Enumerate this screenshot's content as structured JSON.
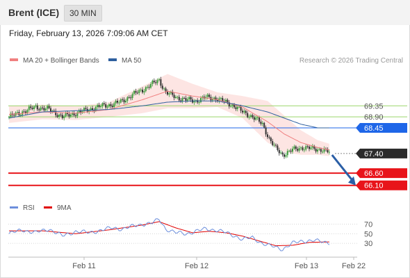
{
  "header": {
    "instrument": "Brent (ICE)",
    "timeframe": "30 MIN"
  },
  "date_line": "Friday, February 13, 2026 7:09:06 AM CET",
  "credit": "Research © 2026 Trading Central",
  "colors": {
    "ma20": "#f08080",
    "ma50": "#2e5f9e",
    "bands": "#fde0de",
    "rsi": "#6d8fdc",
    "rsi_ma": "#e00000",
    "candle_up": "#3b9b3b",
    "candle_down": "#333333",
    "support": "#e8141a",
    "resistance": "#9ad56a",
    "pivot": "#1e66e8",
    "last": "#2b2b2b",
    "arrow": "#2b5fa6"
  },
  "chart_data": [
    {
      "type": "candlestick",
      "title": "Brent (ICE)",
      "timeframe": "30 MIN",
      "x_ticks": [
        "Feb 11",
        "Feb 12",
        "Feb 13",
        "Feb 22"
      ],
      "ylim": [
        65.95,
        70.55
      ],
      "legend": [
        {
          "name": "MA 20 + Bollinger Bands",
          "color": "#f08080"
        },
        {
          "name": "MA 50",
          "color": "#2e5f9e"
        }
      ],
      "levels": [
        {
          "value": 69.35,
          "label": "69.35",
          "kind": "resistance"
        },
        {
          "value": 68.9,
          "label": "68.90",
          "kind": "resistance"
        },
        {
          "value": 68.45,
          "label": "68.45",
          "kind": "pivot"
        },
        {
          "value": 67.4,
          "label": "67.40",
          "kind": "last"
        },
        {
          "value": 66.6,
          "label": "66.60",
          "kind": "support"
        },
        {
          "value": 66.1,
          "label": "66.10",
          "kind": "support"
        }
      ],
      "close_anchors": [
        [
          0,
          68.9
        ],
        [
          8,
          69.1
        ],
        [
          16,
          69.3
        ],
        [
          24,
          69.2
        ],
        [
          32,
          68.9
        ],
        [
          40,
          69.05
        ],
        [
          48,
          69.2
        ],
        [
          56,
          69.35
        ],
        [
          62,
          69.4
        ],
        [
          68,
          69.55
        ],
        [
          74,
          69.8
        ],
        [
          80,
          70.0
        ],
        [
          86,
          70.25
        ],
        [
          90,
          70.4
        ],
        [
          94,
          69.9
        ],
        [
          100,
          69.7
        ],
        [
          106,
          69.6
        ],
        [
          112,
          69.55
        ],
        [
          118,
          69.7
        ],
        [
          124,
          69.65
        ],
        [
          130,
          69.5
        ],
        [
          136,
          69.3
        ],
        [
          140,
          69.1
        ],
        [
          146,
          68.9
        ],
        [
          152,
          68.6
        ],
        [
          156,
          68.0
        ],
        [
          160,
          67.6
        ],
        [
          164,
          67.35
        ],
        [
          170,
          67.55
        ],
        [
          176,
          67.65
        ],
        [
          182,
          67.6
        ],
        [
          188,
          67.55
        ],
        [
          192,
          67.45
        ]
      ],
      "ma20_anchors": [
        [
          0,
          69.0
        ],
        [
          20,
          69.1
        ],
        [
          40,
          69.05
        ],
        [
          60,
          69.2
        ],
        [
          80,
          69.6
        ],
        [
          95,
          69.95
        ],
        [
          110,
          69.75
        ],
        [
          125,
          69.6
        ],
        [
          140,
          69.3
        ],
        [
          155,
          68.7
        ],
        [
          165,
          68.2
        ],
        [
          175,
          67.85
        ],
        [
          185,
          67.65
        ],
        [
          192,
          67.55
        ]
      ],
      "ma50_anchors": [
        [
          0,
          68.85
        ],
        [
          20,
          69.1
        ],
        [
          40,
          69.15
        ],
        [
          60,
          69.2
        ],
        [
          80,
          69.35
        ],
        [
          95,
          69.5
        ],
        [
          110,
          69.55
        ],
        [
          125,
          69.55
        ],
        [
          140,
          69.35
        ],
        [
          155,
          69.1
        ],
        [
          165,
          68.85
        ],
        [
          175,
          68.6
        ],
        [
          185,
          68.45
        ],
        [
          192,
          68.45
        ]
      ],
      "band_halfwidth_anchors": [
        [
          0,
          0.35
        ],
        [
          20,
          0.3
        ],
        [
          40,
          0.28
        ],
        [
          60,
          0.3
        ],
        [
          80,
          0.55
        ],
        [
          95,
          0.7
        ],
        [
          110,
          0.5
        ],
        [
          125,
          0.3
        ],
        [
          140,
          0.45
        ],
        [
          155,
          0.85
        ],
        [
          165,
          0.75
        ],
        [
          175,
          0.5
        ],
        [
          185,
          0.3
        ],
        [
          192,
          0.25
        ]
      ],
      "forecast": {
        "from": 67.4,
        "to": 66.1
      }
    },
    {
      "type": "line",
      "title": "RSI",
      "legend": [
        {
          "name": "RSI",
          "color": "#6d8fdc"
        },
        {
          "name": "9MA",
          "color": "#e00000"
        }
      ],
      "ylim": [
        10,
        85
      ],
      "y_ticks": [
        70,
        50,
        30
      ],
      "rsi_anchors": [
        [
          0,
          50
        ],
        [
          8,
          58
        ],
        [
          16,
          52
        ],
        [
          24,
          60
        ],
        [
          32,
          45
        ],
        [
          40,
          55
        ],
        [
          48,
          52
        ],
        [
          56,
          58
        ],
        [
          62,
          62
        ],
        [
          68,
          60
        ],
        [
          74,
          65
        ],
        [
          80,
          70
        ],
        [
          86,
          72
        ],
        [
          90,
          80
        ],
        [
          94,
          60
        ],
        [
          100,
          52
        ],
        [
          106,
          50
        ],
        [
          112,
          55
        ],
        [
          118,
          60
        ],
        [
          124,
          58
        ],
        [
          130,
          52
        ],
        [
          136,
          45
        ],
        [
          140,
          38
        ],
        [
          146,
          42
        ],
        [
          152,
          30
        ],
        [
          156,
          25
        ],
        [
          160,
          22
        ],
        [
          164,
          18
        ],
        [
          170,
          30
        ],
        [
          176,
          35
        ],
        [
          182,
          36
        ],
        [
          188,
          33
        ],
        [
          192,
          32
        ]
      ],
      "ma9_anchors": [
        [
          0,
          56
        ],
        [
          20,
          56
        ],
        [
          40,
          50
        ],
        [
          60,
          58
        ],
        [
          80,
          68
        ],
        [
          90,
          75
        ],
        [
          100,
          62
        ],
        [
          110,
          52
        ],
        [
          120,
          55
        ],
        [
          130,
          52
        ],
        [
          140,
          45
        ],
        [
          150,
          35
        ],
        [
          160,
          25
        ],
        [
          170,
          26
        ],
        [
          180,
          32
        ],
        [
          192,
          33
        ]
      ]
    }
  ]
}
